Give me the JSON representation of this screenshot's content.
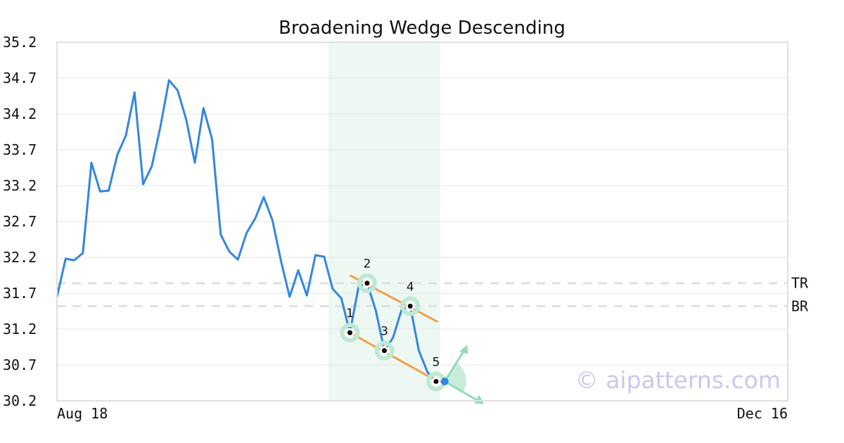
{
  "chart_data": {
    "type": "line",
    "title": "Broadening Wedge Descending",
    "xlabel": "",
    "ylabel": "",
    "ylim": [
      30.2,
      35.2
    ],
    "y_ticks": [
      "35.2",
      "34.7",
      "34.2",
      "33.7",
      "33.2",
      "32.7",
      "32.2",
      "31.7",
      "31.2",
      "30.7",
      "30.2"
    ],
    "x_tick_labels": [
      "Aug 18",
      "Dec 16"
    ],
    "grid": true,
    "line_color": "#3386e0",
    "series": [
      {
        "values": [
          31.65,
          32.18,
          32.16,
          32.26,
          33.52,
          33.12,
          33.13,
          33.63,
          33.9,
          34.5,
          33.22,
          33.47,
          34.02,
          34.67,
          34.53,
          34.12,
          33.52,
          34.28,
          33.85,
          32.52,
          32.28,
          32.17,
          32.54,
          32.74,
          33.04,
          32.72,
          32.15,
          31.65,
          32.02,
          31.67,
          32.23,
          32.21,
          31.76,
          31.63,
          31.15,
          31.79,
          31.84,
          31.46,
          30.9,
          31.08,
          31.47,
          31.52,
          30.9,
          30.6,
          30.47,
          30.47
        ]
      }
    ],
    "highlight_range": {
      "start_index": 32,
      "end_index": 45,
      "color": "#eef8f3"
    },
    "reference_lines": [
      {
        "label": "TR",
        "value": 31.84
      },
      {
        "label": "BR",
        "value": 31.52
      }
    ],
    "trend_lines": [
      {
        "from": [
          34,
          31.95
        ],
        "to": [
          44.2,
          31.3
        ],
        "color": "#f0a04b"
      },
      {
        "from": [
          34,
          31.15
        ],
        "to": [
          44.2,
          30.47
        ],
        "color": "#f0a04b"
      }
    ],
    "points": [
      {
        "label": "1",
        "index": 34,
        "value": 31.15
      },
      {
        "label": "2",
        "index": 36,
        "value": 31.84
      },
      {
        "label": "3",
        "index": 38,
        "value": 30.9
      },
      {
        "label": "4",
        "index": 41,
        "value": 31.52
      },
      {
        "label": "5",
        "index": 44,
        "value": 30.47
      }
    ],
    "breakout_point": {
      "index": 45,
      "value": 30.47,
      "color": "#3386e0"
    },
    "arrow_color": "#8fdcb4",
    "watermark": "© aipatterns.com"
  }
}
